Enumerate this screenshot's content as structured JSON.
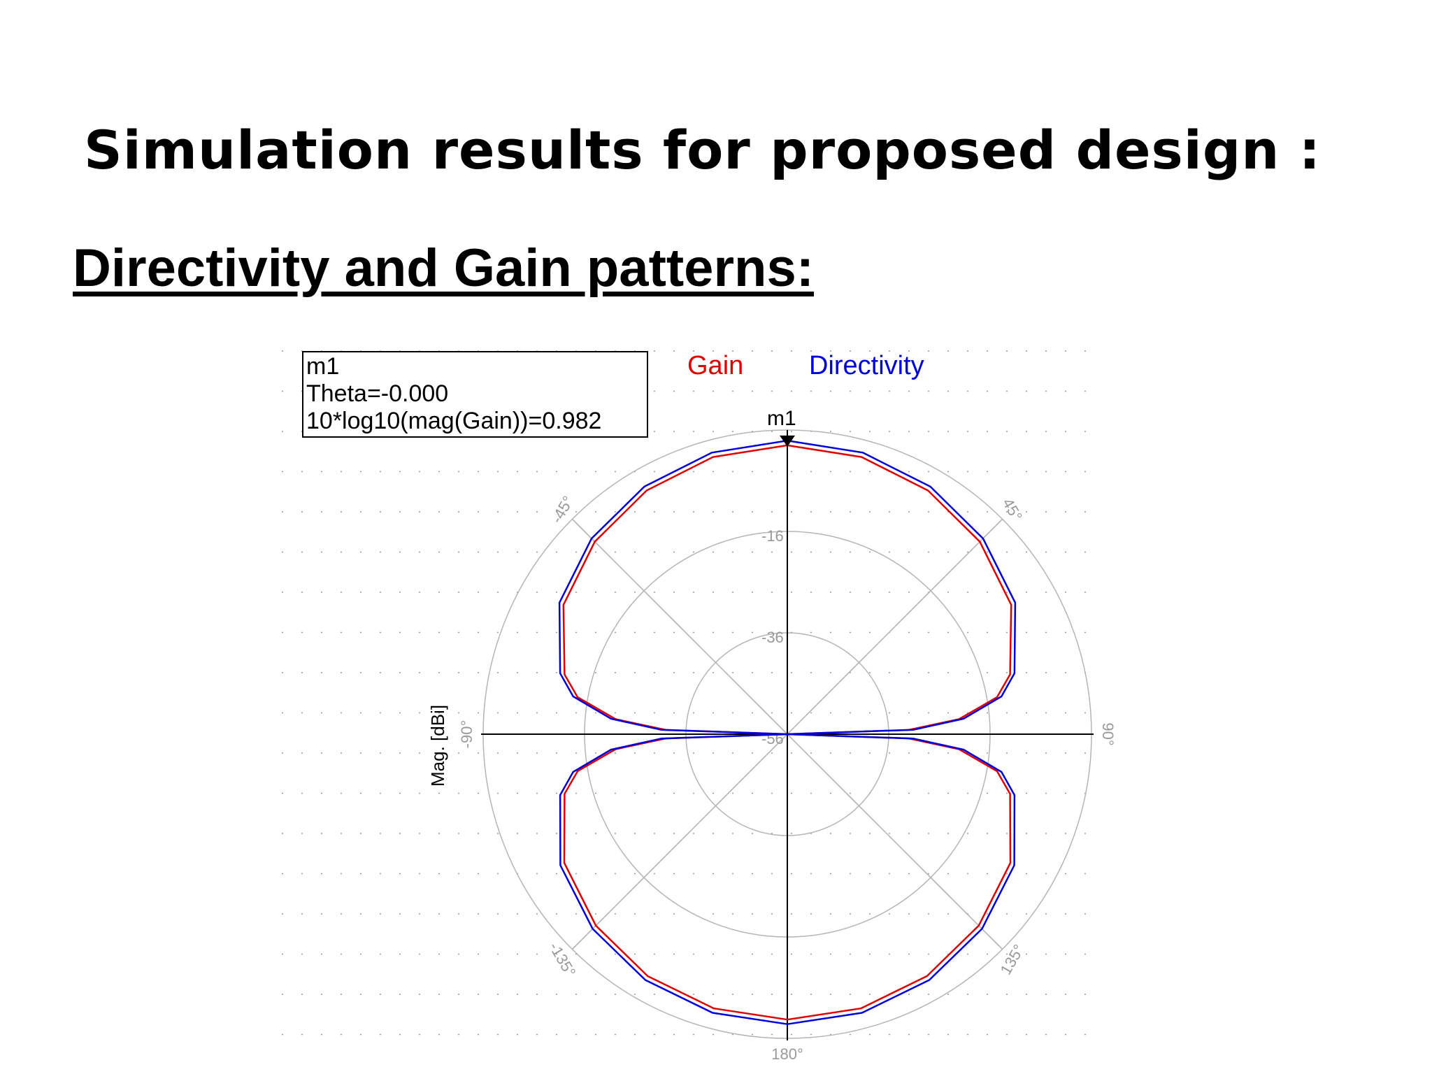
{
  "slide": {
    "title": "Simulation results for proposed design :",
    "subtitle": "Directivity and Gain patterns:"
  },
  "chart_data": {
    "type": "polar",
    "ylabel": "Mag. [dBi]",
    "radial_ticks": [
      "-16",
      "-36",
      "-56"
    ],
    "radial_range": [
      -56,
      4
    ],
    "angle_ticks": [
      "-45°",
      "45°",
      "-90°",
      "90°",
      "-135°",
      "135°",
      "180°"
    ],
    "legend": [
      {
        "name": "Gain",
        "color": "#e00000"
      },
      {
        "name": "Directivity",
        "color": "#0000dd"
      }
    ],
    "marker": {
      "name": "m1",
      "lines": [
        "m1",
        "Theta=-0.000",
        "10*log10(mag(Gain))=0.982"
      ],
      "theta": 0,
      "value": 0.982
    },
    "theta": [
      0,
      15,
      30,
      45,
      60,
      75,
      80,
      85,
      88,
      90,
      92,
      95,
      100,
      105,
      120,
      135,
      150,
      165,
      180
    ],
    "series": [
      {
        "name": "Gain",
        "color": "#e00000",
        "values": [
          0.982,
          0.6,
          -0.5,
          -2.3,
          -5.0,
          -10.5,
          -14.0,
          -22.0,
          -32.0,
          -56.0,
          -32.0,
          -22.0,
          -14.0,
          -10.5,
          -5.2,
          -2.6,
          -0.9,
          0.0,
          0.3
        ]
      },
      {
        "name": "Directivity",
        "color": "#0000dd",
        "values": [
          1.9,
          1.5,
          0.4,
          -1.4,
          -4.1,
          -9.6,
          -13.1,
          -21.1,
          -31.1,
          -56.0,
          -31.1,
          -21.1,
          -13.1,
          -9.6,
          -4.3,
          -1.7,
          0.0,
          0.9,
          1.2
        ]
      }
    ]
  }
}
